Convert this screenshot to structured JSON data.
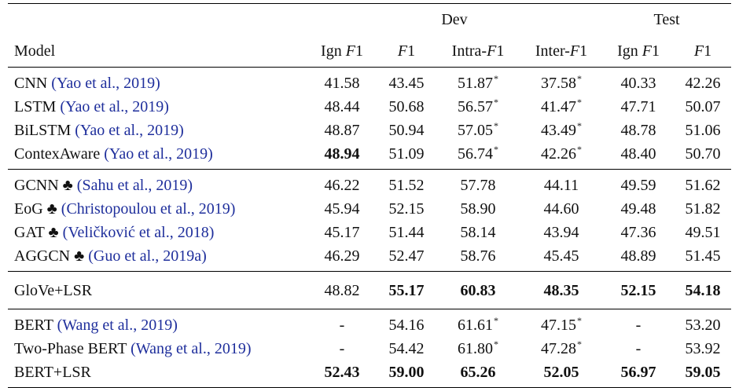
{
  "header": {
    "dev": "Dev",
    "test": "Test",
    "model": "Model",
    "cols": [
      "Ign F1",
      "F1",
      "Intra-F1",
      "Inter-F1",
      "Ign F1",
      "F1"
    ]
  },
  "groups": [
    {
      "rows": [
        {
          "name": "CNN",
          "cite": "(Yao et al., 2019)",
          "vals": [
            "41.58",
            "43.45",
            "51.87*",
            "37.58*",
            "40.33",
            "42.26"
          ]
        },
        {
          "name": "LSTM",
          "cite": "(Yao et al., 2019)",
          "vals": [
            "48.44",
            "50.68",
            "56.57*",
            "41.47*",
            "47.71",
            "50.07"
          ]
        },
        {
          "name": "BiLSTM",
          "cite": "(Yao et al., 2019)",
          "vals": [
            "48.87",
            "50.94",
            "57.05*",
            "43.49*",
            "48.78",
            "51.06"
          ]
        },
        {
          "name": "ContexAware",
          "cite": "(Yao et al., 2019)",
          "vals": [
            "48.94",
            "51.09",
            "56.74*",
            "42.26*",
            "48.40",
            "50.70"
          ],
          "bold": [
            0
          ]
        }
      ]
    },
    {
      "rows": [
        {
          "name": "GCNN",
          "club": "♣",
          "cite": "(Sahu et al., 2019)",
          "vals": [
            "46.22",
            "51.52",
            "57.78",
            "44.11",
            "49.59",
            "51.62"
          ]
        },
        {
          "name": "EoG",
          "club": "♣",
          "cite": "(Christopoulou et al., 2019)",
          "vals": [
            "45.94",
            "52.15",
            "58.90",
            "44.60",
            "49.48",
            "51.82"
          ]
        },
        {
          "name": "GAT",
          "club": "♣",
          "cite": "(Veličković et al., 2018)",
          "vals": [
            "45.17",
            "51.44",
            "58.14",
            "43.94",
            "47.36",
            "49.51"
          ]
        },
        {
          "name": "AGGCN",
          "club": "♣",
          "cite": "(Guo et al., 2019a)",
          "vals": [
            "46.29",
            "52.47",
            "58.76",
            "45.45",
            "48.89",
            "51.45"
          ]
        }
      ]
    },
    {
      "rows": [
        {
          "name": "GloVe+LSR",
          "cite": "",
          "vals": [
            "48.82",
            "55.17",
            "60.83",
            "48.35",
            "52.15",
            "54.18"
          ],
          "bold": [
            1,
            2,
            3,
            4,
            5
          ]
        }
      ]
    },
    {
      "rows": [
        {
          "name": "BERT",
          "cite": "(Wang et al., 2019)",
          "vals": [
            "-",
            "54.16",
            "61.61*",
            "47.15*",
            "-",
            "53.20"
          ]
        },
        {
          "name": "Two-Phase BERT",
          "cite": "(Wang et al., 2019)",
          "vals": [
            "-",
            "54.42",
            "61.80*",
            "47.28*",
            "-",
            "53.92"
          ]
        },
        {
          "name": "BERT+LSR",
          "cite": "",
          "vals": [
            "52.43",
            "59.00",
            "65.26",
            "52.05",
            "56.97",
            "59.05"
          ],
          "bold": [
            0,
            1,
            2,
            3,
            4,
            5
          ]
        }
      ]
    }
  ]
}
